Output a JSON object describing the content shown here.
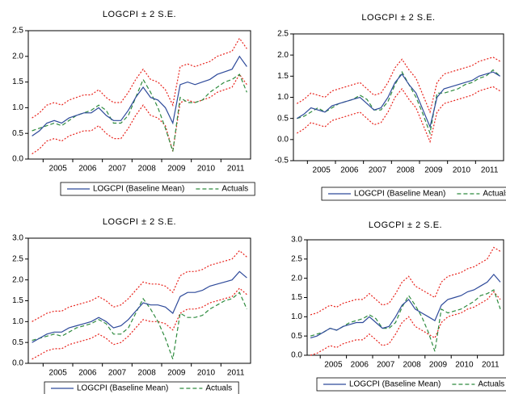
{
  "chart_data": [
    {
      "type": "line",
      "title": "LOGCPI ± 2 S.E.",
      "categories": [
        null,
        null,
        null,
        "2005",
        null,
        null,
        null,
        "2006",
        null,
        null,
        null,
        "2007",
        null,
        null,
        null,
        "2008",
        null,
        null,
        null,
        "2009",
        null,
        null,
        null,
        "2010",
        null,
        null,
        null,
        "2011",
        null,
        null
      ],
      "ylim": [
        0,
        2.5
      ],
      "yticks": [
        {
          "value": 0,
          "label": "0.0"
        },
        {
          "value": 0.5,
          "label": "0.5"
        },
        {
          "value": 1,
          "label": "1.0"
        },
        {
          "value": 1.5,
          "label": "1.5"
        },
        {
          "value": 2,
          "label": "2.0"
        },
        {
          "value": 2.5,
          "label": "2.5"
        }
      ],
      "series": [
        {
          "name": "LOGCPI (Baseline Mean)",
          "color": "#2e4a9a",
          "line_style": "solid",
          "values": [
            0.45,
            0.55,
            0.7,
            0.75,
            0.7,
            0.8,
            0.85,
            0.9,
            0.9,
            1.0,
            0.85,
            0.75,
            0.75,
            0.95,
            1.2,
            1.4,
            1.2,
            1.15,
            1.0,
            0.7,
            1.45,
            1.5,
            1.45,
            1.5,
            1.55,
            1.65,
            1.7,
            1.75,
            2.0,
            1.8
          ]
        },
        {
          "name": "Actuals",
          "color": "#2e8b3e",
          "line_style": "dashed",
          "values": [
            0.55,
            0.6,
            0.65,
            0.7,
            0.65,
            0.75,
            0.85,
            0.9,
            0.95,
            1.05,
            0.95,
            0.7,
            0.7,
            0.85,
            1.2,
            1.55,
            1.3,
            1.0,
            0.6,
            0.15,
            1.2,
            1.1,
            1.1,
            1.15,
            1.3,
            1.4,
            1.5,
            1.55,
            1.65,
            1.3
          ]
        },
        {
          "color": "#e8231c",
          "line_style": "dotted",
          "values": [
            0.8,
            0.9,
            1.05,
            1.1,
            1.05,
            1.15,
            1.2,
            1.25,
            1.25,
            1.35,
            1.2,
            1.1,
            1.1,
            1.3,
            1.55,
            1.75,
            1.55,
            1.5,
            1.35,
            1.05,
            1.8,
            1.85,
            1.8,
            1.85,
            1.9,
            2.0,
            2.05,
            2.1,
            2.35,
            2.15
          ]
        },
        {
          "color": "#e8231c",
          "line_style": "dotted",
          "values": [
            0.1,
            0.2,
            0.35,
            0.4,
            0.35,
            0.45,
            0.5,
            0.55,
            0.55,
            0.65,
            0.5,
            0.4,
            0.4,
            0.6,
            0.85,
            1.05,
            0.85,
            0.8,
            0.65,
            0.15,
            1.1,
            1.15,
            1.1,
            1.15,
            1.2,
            1.3,
            1.35,
            1.4,
            1.65,
            1.45
          ]
        }
      ]
    },
    {
      "type": "line",
      "title": "LOGCPI ± 2 S.E.",
      "categories": [
        null,
        null,
        null,
        "2005",
        null,
        null,
        null,
        "2006",
        null,
        null,
        null,
        "2007",
        null,
        null,
        null,
        "2008",
        null,
        null,
        null,
        "2009",
        null,
        null,
        null,
        "2010",
        null,
        null,
        null,
        "2011",
        null,
        null
      ],
      "ylim": [
        -0.5,
        2.5
      ],
      "yticks": [
        {
          "value": -0.5,
          "label": "-0.5"
        },
        {
          "value": 0,
          "label": "0.0"
        },
        {
          "value": 0.5,
          "label": "0.5"
        },
        {
          "value": 1,
          "label": "1.0"
        },
        {
          "value": 1.5,
          "label": "1.5"
        },
        {
          "value": 2,
          "label": "2.0"
        },
        {
          "value": 2.5,
          "label": "2.5"
        }
      ],
      "series": [
        {
          "name": "LOGCPI (Baseline Mean)",
          "color": "#2e4a9a",
          "line_style": "solid",
          "values": [
            0.5,
            0.6,
            0.75,
            0.7,
            0.65,
            0.8,
            0.85,
            0.9,
            0.95,
            1.0,
            0.85,
            0.7,
            0.75,
            1.0,
            1.35,
            1.55,
            1.3,
            1.1,
            0.7,
            0.3,
            1.0,
            1.2,
            1.25,
            1.3,
            1.35,
            1.4,
            1.5,
            1.55,
            1.6,
            1.5
          ]
        },
        {
          "name": "Actuals",
          "color": "#2e8b3e",
          "line_style": "dashed",
          "values": [
            0.5,
            0.55,
            0.65,
            0.75,
            0.65,
            0.75,
            0.85,
            0.9,
            0.95,
            1.05,
            0.95,
            0.7,
            0.7,
            0.9,
            1.3,
            1.6,
            1.3,
            1.0,
            0.6,
            0.15,
            1.1,
            1.1,
            1.15,
            1.2,
            1.3,
            1.35,
            1.45,
            1.5,
            1.65,
            1.5
          ]
        },
        {
          "color": "#e8231c",
          "line_style": "dotted",
          "values": [
            0.85,
            0.95,
            1.1,
            1.05,
            1.0,
            1.15,
            1.2,
            1.25,
            1.3,
            1.35,
            1.2,
            1.05,
            1.1,
            1.35,
            1.7,
            1.9,
            1.65,
            1.45,
            1.05,
            0.65,
            1.35,
            1.55,
            1.6,
            1.65,
            1.7,
            1.75,
            1.85,
            1.9,
            1.95,
            1.85
          ]
        },
        {
          "color": "#e8231c",
          "line_style": "dotted",
          "values": [
            0.15,
            0.25,
            0.4,
            0.35,
            0.3,
            0.45,
            0.5,
            0.55,
            0.6,
            0.65,
            0.5,
            0.35,
            0.4,
            0.65,
            1.0,
            1.2,
            0.95,
            0.75,
            0.35,
            -0.05,
            0.65,
            0.85,
            0.9,
            0.95,
            1.0,
            1.05,
            1.15,
            1.2,
            1.25,
            1.15
          ]
        }
      ]
    },
    {
      "type": "line",
      "title": "LOGCPI ± 2 S.E.",
      "categories": [
        null,
        null,
        null,
        "2005",
        null,
        null,
        null,
        "2006",
        null,
        null,
        null,
        "2007",
        null,
        null,
        null,
        "2008",
        null,
        null,
        null,
        "2009",
        null,
        null,
        null,
        "2010",
        null,
        null,
        null,
        "2011",
        null,
        null
      ],
      "ylim": [
        0,
        3
      ],
      "yticks": [
        {
          "value": 0,
          "label": "0.0"
        },
        {
          "value": 0.5,
          "label": "0.5"
        },
        {
          "value": 1,
          "label": "1.0"
        },
        {
          "value": 1.5,
          "label": "1.5"
        },
        {
          "value": 2,
          "label": "2.0"
        },
        {
          "value": 2.5,
          "label": "2.5"
        },
        {
          "value": 3,
          "label": "3.0"
        }
      ],
      "series": [
        {
          "name": "LOGCPI (Baseline Mean)",
          "color": "#2e4a9a",
          "line_style": "solid",
          "values": [
            0.5,
            0.6,
            0.7,
            0.75,
            0.75,
            0.85,
            0.9,
            0.95,
            1.0,
            1.1,
            1.0,
            0.85,
            0.9,
            1.05,
            1.25,
            1.45,
            1.4,
            1.4,
            1.35,
            1.2,
            1.6,
            1.7,
            1.7,
            1.75,
            1.85,
            1.9,
            1.95,
            2.0,
            2.2,
            2.05
          ]
        },
        {
          "name": "Actuals",
          "color": "#2e8b3e",
          "line_style": "dashed",
          "values": [
            0.55,
            0.6,
            0.65,
            0.7,
            0.65,
            0.75,
            0.85,
            0.9,
            0.95,
            1.05,
            0.95,
            0.7,
            0.7,
            0.85,
            1.2,
            1.55,
            1.3,
            1.0,
            0.6,
            0.1,
            1.2,
            1.1,
            1.1,
            1.15,
            1.3,
            1.4,
            1.5,
            1.55,
            1.7,
            1.3
          ]
        },
        {
          "color": "#e8231c",
          "line_style": "dotted",
          "values": [
            1.0,
            1.1,
            1.2,
            1.25,
            1.25,
            1.35,
            1.4,
            1.45,
            1.5,
            1.6,
            1.5,
            1.35,
            1.4,
            1.55,
            1.75,
            1.95,
            1.9,
            1.9,
            1.85,
            1.7,
            2.1,
            2.2,
            2.2,
            2.25,
            2.35,
            2.4,
            2.45,
            2.5,
            2.7,
            2.55
          ]
        },
        {
          "color": "#e8231c",
          "line_style": "dotted",
          "values": [
            0.1,
            0.2,
            0.3,
            0.35,
            0.35,
            0.45,
            0.5,
            0.55,
            0.6,
            0.7,
            0.6,
            0.45,
            0.5,
            0.65,
            0.85,
            1.05,
            1.0,
            1.0,
            0.95,
            0.8,
            1.2,
            1.3,
            1.3,
            1.35,
            1.45,
            1.5,
            1.55,
            1.6,
            1.8,
            1.65
          ]
        }
      ]
    },
    {
      "type": "line",
      "title": "LOGCPI ± 2 S.E.",
      "categories": [
        null,
        null,
        null,
        "2005",
        null,
        null,
        null,
        "2006",
        null,
        null,
        null,
        "2007",
        null,
        null,
        null,
        "2008",
        null,
        null,
        null,
        "2009",
        null,
        null,
        null,
        "2010",
        null,
        null,
        null,
        "2011",
        null,
        null
      ],
      "ylim": [
        0,
        3
      ],
      "yticks": [
        {
          "value": 0,
          "label": "0.0"
        },
        {
          "value": 0.5,
          "label": "0.5"
        },
        {
          "value": 1,
          "label": "1.0"
        },
        {
          "value": 1.5,
          "label": "1.5"
        },
        {
          "value": 2,
          "label": "2.0"
        },
        {
          "value": 2.5,
          "label": "2.5"
        },
        {
          "value": 3,
          "label": "3.0"
        }
      ],
      "series": [
        {
          "name": "LOGCPI (Baseline Mean)",
          "color": "#2e4a9a",
          "line_style": "solid",
          "values": [
            0.45,
            0.5,
            0.6,
            0.7,
            0.65,
            0.75,
            0.8,
            0.85,
            0.85,
            1.0,
            0.85,
            0.7,
            0.75,
            1.0,
            1.3,
            1.45,
            1.2,
            1.1,
            1.0,
            0.9,
            1.3,
            1.45,
            1.5,
            1.55,
            1.65,
            1.7,
            1.8,
            1.9,
            2.1,
            1.9
          ]
        },
        {
          "name": "Actuals",
          "color": "#2e8b3e",
          "line_style": "dashed",
          "values": [
            0.5,
            0.55,
            0.6,
            0.7,
            0.65,
            0.75,
            0.85,
            0.9,
            0.95,
            1.05,
            0.95,
            0.7,
            0.7,
            0.85,
            1.25,
            1.55,
            1.3,
            1.0,
            0.6,
            0.1,
            1.2,
            1.1,
            1.15,
            1.2,
            1.3,
            1.4,
            1.55,
            1.6,
            1.7,
            1.2
          ]
        },
        {
          "color": "#e8231c",
          "line_style": "dotted",
          "values": [
            1.05,
            1.1,
            1.2,
            1.3,
            1.25,
            1.35,
            1.4,
            1.45,
            1.45,
            1.6,
            1.45,
            1.3,
            1.35,
            1.6,
            1.9,
            2.05,
            1.8,
            1.7,
            1.6,
            1.5,
            1.9,
            2.05,
            2.1,
            2.15,
            2.25,
            2.3,
            2.4,
            2.5,
            2.8,
            2.7
          ]
        },
        {
          "color": "#e8231c",
          "line_style": "dotted",
          "values": [
            0.0,
            0.05,
            0.15,
            0.25,
            0.2,
            0.3,
            0.35,
            0.4,
            0.4,
            0.55,
            0.4,
            0.25,
            0.3,
            0.55,
            0.85,
            1.0,
            0.75,
            0.65,
            0.55,
            0.45,
            0.85,
            1.0,
            1.05,
            1.1,
            1.2,
            1.25,
            1.35,
            1.45,
            1.65,
            1.45
          ]
        }
      ]
    }
  ]
}
